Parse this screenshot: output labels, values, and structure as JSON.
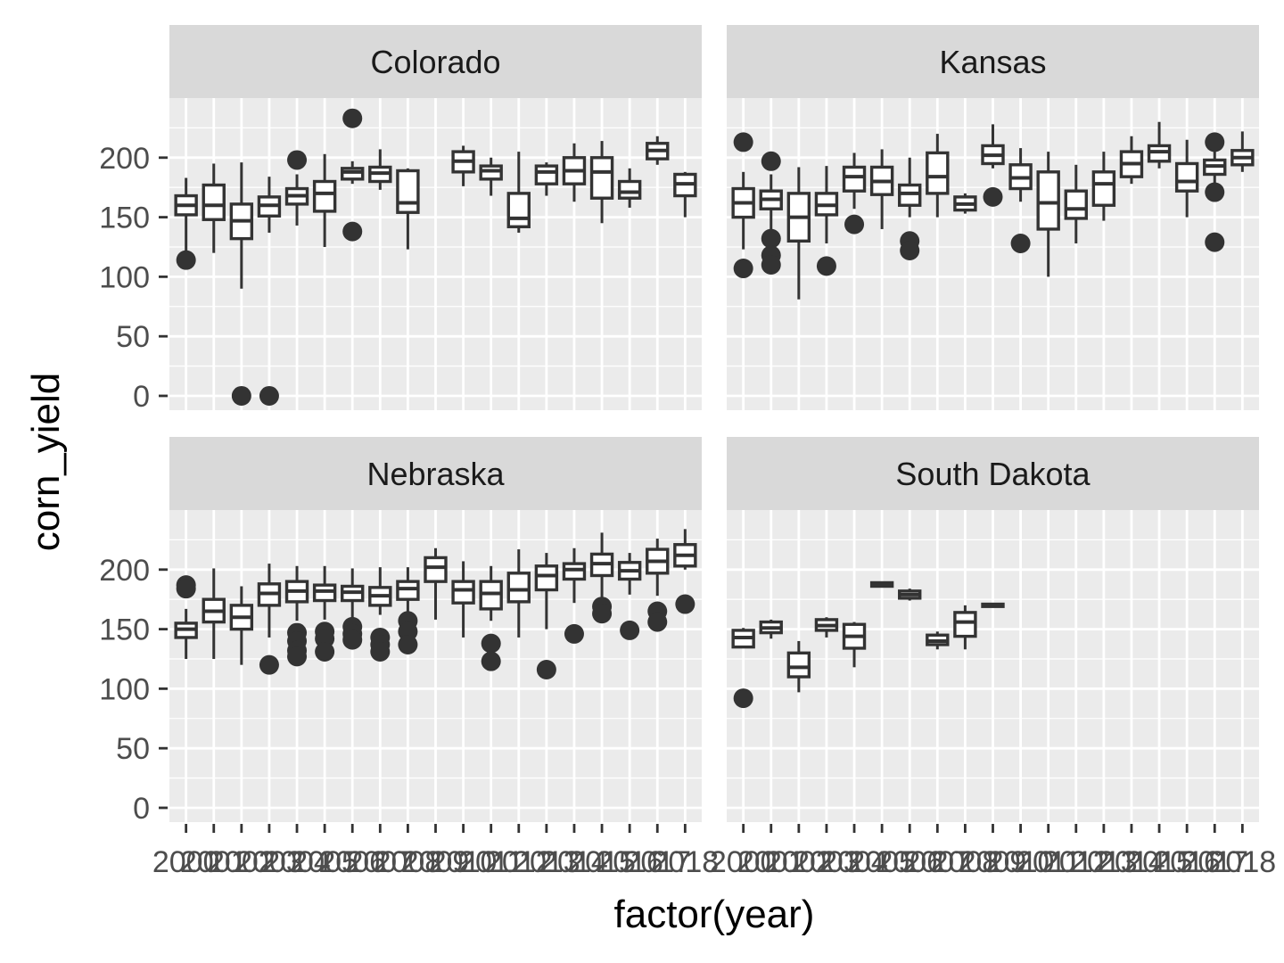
{
  "chart_data": {
    "type": "boxplot",
    "xlabel": "factor(year)",
    "ylabel": "corn_yield",
    "x_categories": [
      "2000",
      "2001",
      "2002",
      "2003",
      "2004",
      "2005",
      "2006",
      "2007",
      "2008",
      "2009",
      "2010",
      "2011",
      "2012",
      "2013",
      "2014",
      "2015",
      "2016",
      "2017",
      "2018"
    ],
    "y_ticks": [
      0,
      50,
      100,
      150,
      200
    ],
    "ylim": [
      -12,
      250
    ],
    "panel_background": "#ebebeb",
    "strip_background": "#d9d9d9",
    "box_color": "#333333",
    "panels": [
      {
        "title": "Colorado",
        "boxes": [
          {
            "year": "2000",
            "low": 122,
            "q1": 152,
            "median": 160,
            "q3": 168,
            "high": 183,
            "outliers": [
              114
            ]
          },
          {
            "year": "2001",
            "low": 120,
            "q1": 148,
            "median": 160,
            "q3": 177,
            "high": 195,
            "outliers": []
          },
          {
            "year": "2002",
            "low": 90,
            "q1": 132,
            "median": 147,
            "q3": 161,
            "high": 196,
            "outliers": [
              0
            ]
          },
          {
            "year": "2003",
            "low": 137,
            "q1": 151,
            "median": 160,
            "q3": 167,
            "high": 184,
            "outliers": [
              0
            ]
          },
          {
            "year": "2004",
            "low": 143,
            "q1": 161,
            "median": 168,
            "q3": 174,
            "high": 186,
            "outliers": [
              198
            ]
          },
          {
            "year": "2005",
            "low": 125,
            "q1": 155,
            "median": 170,
            "q3": 180,
            "high": 203,
            "outliers": []
          },
          {
            "year": "2006",
            "low": 178,
            "q1": 182,
            "median": 188,
            "q3": 191,
            "high": 197,
            "outliers": [
              233,
              138
            ]
          },
          {
            "year": "2007",
            "low": 173,
            "q1": 180,
            "median": 187,
            "q3": 192,
            "high": 207,
            "outliers": []
          },
          {
            "year": "2008",
            "low": 123,
            "q1": 154,
            "median": 162,
            "q3": 189,
            "high": 191,
            "outliers": []
          },
          {
            "year": "2010",
            "low": 176,
            "q1": 188,
            "median": 197,
            "q3": 205,
            "high": 210,
            "outliers": []
          },
          {
            "year": "2011",
            "low": 168,
            "q1": 182,
            "median": 189,
            "q3": 193,
            "high": 200,
            "outliers": []
          },
          {
            "year": "2012",
            "low": 137,
            "q1": 142,
            "median": 149,
            "q3": 170,
            "high": 205,
            "outliers": []
          },
          {
            "year": "2013",
            "low": 168,
            "q1": 178,
            "median": 188,
            "q3": 193,
            "high": 196,
            "outliers": []
          },
          {
            "year": "2014",
            "low": 163,
            "q1": 178,
            "median": 189,
            "q3": 200,
            "high": 212,
            "outliers": []
          },
          {
            "year": "2015",
            "low": 145,
            "q1": 166,
            "median": 188,
            "q3": 200,
            "high": 214,
            "outliers": []
          },
          {
            "year": "2016",
            "low": 158,
            "q1": 166,
            "median": 171,
            "q3": 180,
            "high": 191,
            "outliers": []
          },
          {
            "year": "2017",
            "low": 194,
            "q1": 199,
            "median": 206,
            "q3": 212,
            "high": 218,
            "outliers": []
          },
          {
            "year": "2018",
            "low": 150,
            "q1": 168,
            "median": 178,
            "q3": 186,
            "high": 188,
            "outliers": []
          }
        ]
      },
      {
        "title": "Kansas",
        "boxes": [
          {
            "year": "2000",
            "low": 123,
            "q1": 150,
            "median": 162,
            "q3": 174,
            "high": 188,
            "outliers": [
              213,
              107
            ]
          },
          {
            "year": "2001",
            "low": 133,
            "q1": 157,
            "median": 165,
            "q3": 172,
            "high": 186,
            "outliers": [
              197,
              132,
              118,
              110
            ]
          },
          {
            "year": "2002",
            "low": 81,
            "q1": 130,
            "median": 150,
            "q3": 170,
            "high": 192,
            "outliers": []
          },
          {
            "year": "2003",
            "low": 128,
            "q1": 152,
            "median": 160,
            "q3": 170,
            "high": 193,
            "outliers": [
              109
            ]
          },
          {
            "year": "2004",
            "low": 157,
            "q1": 172,
            "median": 184,
            "q3": 192,
            "high": 204,
            "outliers": [
              144
            ]
          },
          {
            "year": "2005",
            "low": 140,
            "q1": 169,
            "median": 180,
            "q3": 192,
            "high": 207,
            "outliers": []
          },
          {
            "year": "2006",
            "low": 150,
            "q1": 160,
            "median": 170,
            "q3": 177,
            "high": 200,
            "outliers": [
              130,
              122
            ]
          },
          {
            "year": "2007",
            "low": 150,
            "q1": 170,
            "median": 184,
            "q3": 204,
            "high": 220,
            "outliers": []
          },
          {
            "year": "2008",
            "low": 153,
            "q1": 156,
            "median": 161,
            "q3": 167,
            "high": 170,
            "outliers": []
          },
          {
            "year": "2009",
            "low": 191,
            "q1": 195,
            "median": 202,
            "q3": 210,
            "high": 228,
            "outliers": [
              167
            ]
          },
          {
            "year": "2010",
            "low": 163,
            "q1": 174,
            "median": 183,
            "q3": 194,
            "high": 208,
            "outliers": [
              128
            ]
          },
          {
            "year": "2011",
            "low": 100,
            "q1": 140,
            "median": 162,
            "q3": 188,
            "high": 205,
            "outliers": []
          },
          {
            "year": "2012",
            "low": 128,
            "q1": 149,
            "median": 157,
            "q3": 172,
            "high": 194,
            "outliers": []
          },
          {
            "year": "2013",
            "low": 147,
            "q1": 160,
            "median": 178,
            "q3": 188,
            "high": 205,
            "outliers": []
          },
          {
            "year": "2014",
            "low": 178,
            "q1": 184,
            "median": 195,
            "q3": 205,
            "high": 218,
            "outliers": []
          },
          {
            "year": "2015",
            "low": 191,
            "q1": 197,
            "median": 205,
            "q3": 210,
            "high": 230,
            "outliers": []
          },
          {
            "year": "2016",
            "low": 150,
            "q1": 172,
            "median": 180,
            "q3": 195,
            "high": 215,
            "outliers": []
          },
          {
            "year": "2017",
            "low": 177,
            "q1": 186,
            "median": 193,
            "q3": 198,
            "high": 206,
            "outliers": [
              213,
              171,
              129
            ]
          },
          {
            "year": "2018",
            "low": 188,
            "q1": 194,
            "median": 200,
            "q3": 206,
            "high": 222,
            "outliers": []
          }
        ]
      },
      {
        "title": "Nebraska",
        "boxes": [
          {
            "year": "2000",
            "low": 125,
            "q1": 143,
            "median": 150,
            "q3": 155,
            "high": 167,
            "outliers": [
              187,
              184
            ]
          },
          {
            "year": "2001",
            "low": 125,
            "q1": 156,
            "median": 165,
            "q3": 175,
            "high": 201,
            "outliers": []
          },
          {
            "year": "2002",
            "low": 120,
            "q1": 150,
            "median": 160,
            "q3": 170,
            "high": 186,
            "outliers": []
          },
          {
            "year": "2003",
            "low": 143,
            "q1": 170,
            "median": 180,
            "q3": 188,
            "high": 205,
            "outliers": [
              120
            ]
          },
          {
            "year": "2004",
            "low": 157,
            "q1": 173,
            "median": 182,
            "q3": 190,
            "high": 203,
            "outliers": [
              147,
              140,
              132,
              127
            ]
          },
          {
            "year": "2005",
            "low": 158,
            "q1": 174,
            "median": 182,
            "q3": 187,
            "high": 203,
            "outliers": [
              148,
              142,
              131
            ]
          },
          {
            "year": "2006",
            "low": 159,
            "q1": 174,
            "median": 181,
            "q3": 186,
            "high": 201,
            "outliers": [
              152,
              146,
              141
            ]
          },
          {
            "year": "2007",
            "low": 162,
            "q1": 170,
            "median": 178,
            "q3": 185,
            "high": 202,
            "outliers": [
              143,
              137,
              131
            ]
          },
          {
            "year": "2008",
            "low": 163,
            "q1": 175,
            "median": 184,
            "q3": 190,
            "high": 202,
            "outliers": [
              157,
              148,
              137
            ]
          },
          {
            "year": "2009",
            "low": 158,
            "q1": 190,
            "median": 202,
            "q3": 210,
            "high": 218,
            "outliers": []
          },
          {
            "year": "2010",
            "low": 143,
            "q1": 172,
            "median": 183,
            "q3": 190,
            "high": 207,
            "outliers": []
          },
          {
            "year": "2011",
            "low": 157,
            "q1": 167,
            "median": 180,
            "q3": 190,
            "high": 203,
            "outliers": [
              138,
              123
            ]
          },
          {
            "year": "2012",
            "low": 143,
            "q1": 173,
            "median": 183,
            "q3": 197,
            "high": 217,
            "outliers": []
          },
          {
            "year": "2013",
            "low": 150,
            "q1": 183,
            "median": 195,
            "q3": 203,
            "high": 214,
            "outliers": [
              116
            ]
          },
          {
            "year": "2014",
            "low": 172,
            "q1": 192,
            "median": 200,
            "q3": 205,
            "high": 218,
            "outliers": [
              146
            ]
          },
          {
            "year": "2015",
            "low": 177,
            "q1": 195,
            "median": 205,
            "q3": 213,
            "high": 231,
            "outliers": [
              169,
              163
            ]
          },
          {
            "year": "2016",
            "low": 179,
            "q1": 192,
            "median": 199,
            "q3": 206,
            "high": 214,
            "outliers": [
              149
            ]
          },
          {
            "year": "2017",
            "low": 178,
            "q1": 197,
            "median": 207,
            "q3": 217,
            "high": 226,
            "outliers": [
              165,
              156
            ]
          },
          {
            "year": "2018",
            "low": 200,
            "q1": 203,
            "median": 212,
            "q3": 221,
            "high": 234,
            "outliers": [
              171
            ]
          }
        ]
      },
      {
        "title": "South Dakota",
        "boxes": [
          {
            "year": "2000",
            "low": 135,
            "q1": 135,
            "median": 143,
            "q3": 149,
            "high": 151,
            "outliers": [
              92
            ]
          },
          {
            "year": "2001",
            "low": 142,
            "q1": 147,
            "median": 151,
            "q3": 156,
            "high": 158,
            "outliers": []
          },
          {
            "year": "2002",
            "low": 97,
            "q1": 110,
            "median": 118,
            "q3": 130,
            "high": 140,
            "outliers": []
          },
          {
            "year": "2003",
            "low": 143,
            "q1": 149,
            "median": 153,
            "q3": 158,
            "high": 160,
            "outliers": []
          },
          {
            "year": "2004",
            "low": 118,
            "q1": 134,
            "median": 144,
            "q3": 154,
            "high": 156,
            "outliers": []
          },
          {
            "year": "2005",
            "low": 185,
            "q1": 186,
            "median": 187,
            "q3": 189,
            "high": 190,
            "outliers": []
          },
          {
            "year": "2006",
            "low": 174,
            "q1": 176,
            "median": 179,
            "q3": 182,
            "high": 184,
            "outliers": []
          },
          {
            "year": "2007",
            "low": 133,
            "q1": 137,
            "median": 140,
            "q3": 145,
            "high": 148,
            "outliers": []
          },
          {
            "year": "2008",
            "low": 133,
            "q1": 144,
            "median": 156,
            "q3": 164,
            "high": 170,
            "outliers": []
          },
          {
            "year": "2009",
            "low": 168,
            "q1": 169,
            "median": 170,
            "q3": 171,
            "high": 172,
            "outliers": []
          }
        ]
      }
    ]
  }
}
